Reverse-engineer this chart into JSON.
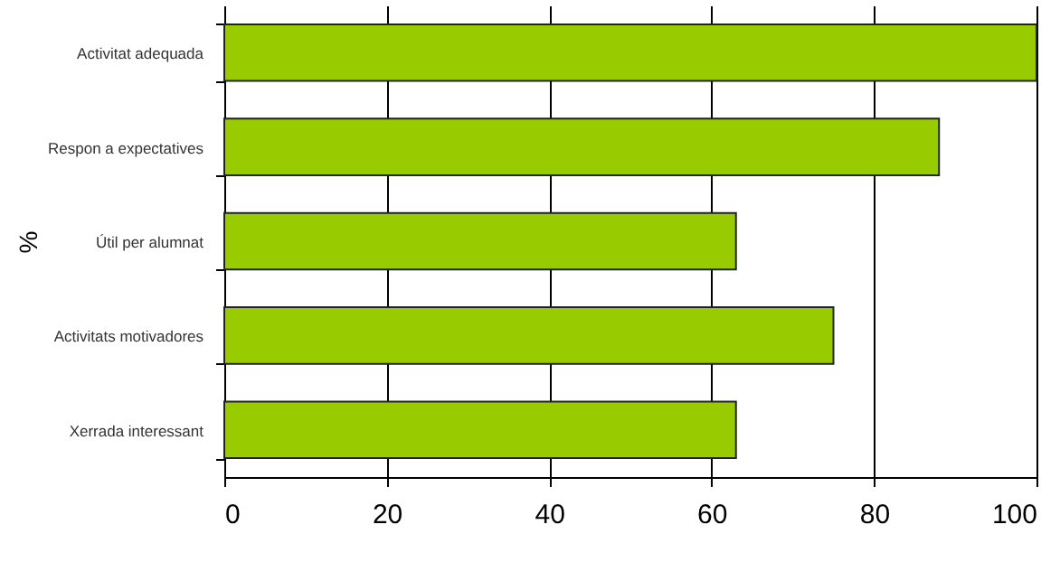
{
  "chart_data": {
    "type": "bar",
    "orientation": "horizontal",
    "ylabel": "%",
    "categories": [
      "Activitat adequada",
      "Respon a expectatives",
      "Útil per alumnat",
      "Activitats motivadores",
      "Xerrada interessant"
    ],
    "values": [
      100,
      88,
      63,
      75,
      63
    ],
    "color": "#99cc00",
    "xlim": [
      0,
      100
    ],
    "xticks": [
      0,
      20,
      40,
      60,
      80,
      100
    ],
    "grid": "x"
  }
}
